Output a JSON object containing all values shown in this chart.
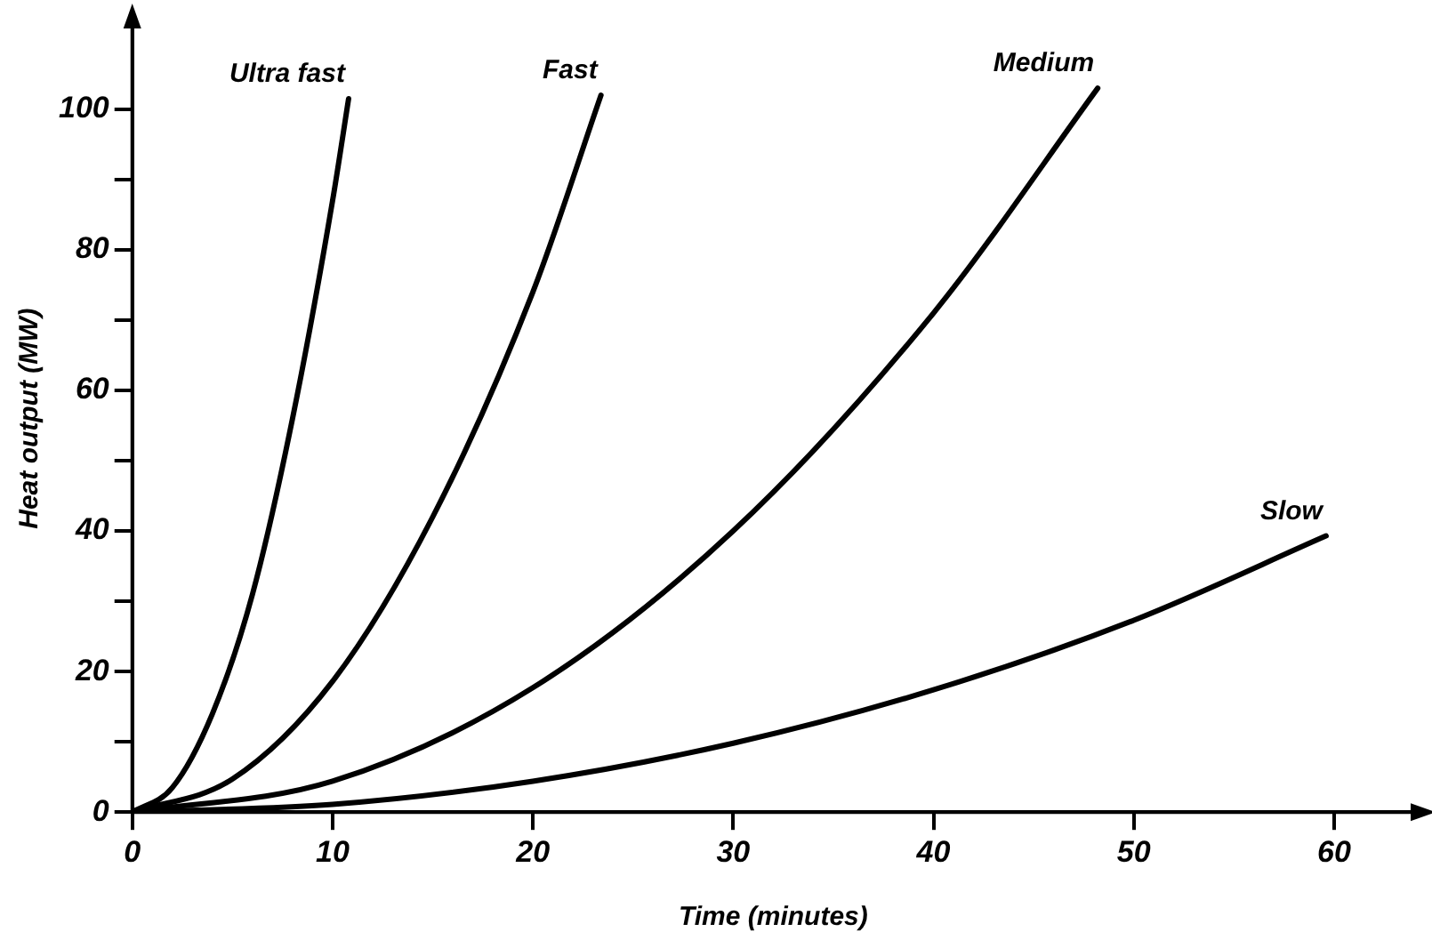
{
  "chart_data": {
    "type": "line",
    "xlabel": "Time (minutes)",
    "ylabel": "Heat output (MW)",
    "xlim": [
      0,
      64
    ],
    "ylim": [
      0,
      112
    ],
    "xticks": [
      0,
      10,
      20,
      30,
      40,
      50,
      60
    ],
    "yticks": [
      0,
      {
        "value": 10,
        "label": null
      },
      20,
      {
        "value": 30,
        "label": null
      },
      40,
      {
        "value": 50,
        "label": null
      },
      60,
      {
        "value": 70,
        "label": null
      },
      80,
      {
        "value": 90,
        "label": null
      },
      100
    ],
    "grid": false,
    "legend": false,
    "marker": "none",
    "line_style": "solid",
    "series": [
      {
        "name": "Ultra fast",
        "color": "#000000",
        "x": [
          0,
          2,
          4,
          6,
          8,
          10,
          10.8
        ],
        "values": [
          0,
          3.5,
          14,
          31,
          56,
          87,
          101.5
        ]
      },
      {
        "name": "Fast",
        "color": "#000000",
        "x": [
          0,
          5,
          10,
          15,
          20,
          23.4
        ],
        "values": [
          0,
          4.7,
          18.6,
          42,
          74,
          102
        ]
      },
      {
        "name": "Medium",
        "color": "#000000",
        "x": [
          0,
          10,
          20,
          30,
          40,
          48.2
        ],
        "values": [
          0,
          4.4,
          17.7,
          40,
          71,
          103
        ]
      },
      {
        "name": "Slow",
        "color": "#000000",
        "x": [
          0,
          10,
          20,
          30,
          40,
          50,
          59.6
        ],
        "values": [
          0,
          1.1,
          4.4,
          9.8,
          17.4,
          27.3,
          39.3
        ]
      }
    ]
  }
}
